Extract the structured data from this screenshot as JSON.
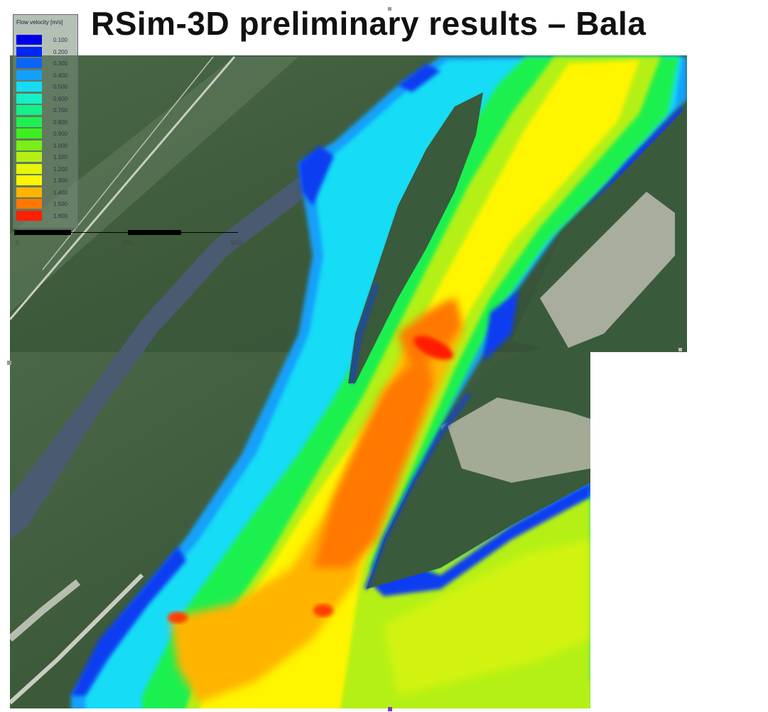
{
  "title": "RSim-3D preliminary results – Bala",
  "legend": {
    "title": "Flow velocity [m/s]",
    "items": [
      {
        "label": "0.100",
        "color": "#0000e6"
      },
      {
        "label": "0.200",
        "color": "#0028f0"
      },
      {
        "label": "0.300",
        "color": "#0a64f5"
      },
      {
        "label": "0.400",
        "color": "#14a0fa"
      },
      {
        "label": "0.500",
        "color": "#14dcf5"
      },
      {
        "label": "0.600",
        "color": "#14f0c8"
      },
      {
        "label": "0.700",
        "color": "#14f08c"
      },
      {
        "label": "0.800",
        "color": "#1ef050"
      },
      {
        "label": "0.900",
        "color": "#3cf01e"
      },
      {
        "label": "1.000",
        "color": "#78f014"
      },
      {
        "label": "1.100",
        "color": "#b4f014"
      },
      {
        "label": "1.200",
        "color": "#e6f50a"
      },
      {
        "label": "1.300",
        "color": "#fff500"
      },
      {
        "label": "1.400",
        "color": "#ffb400"
      },
      {
        "label": "1.500",
        "color": "#ff7800"
      },
      {
        "label": "1.600",
        "color": "#ff1e00"
      }
    ]
  },
  "scalebar": {
    "ticks": [
      "0",
      "250",
      "500"
    ],
    "unit": "m"
  },
  "colors": {
    "forest": "#3d5a3a",
    "forest_dark": "#2c4a2c",
    "clearing": "#a9b09c",
    "river_old": "#4a5a6e",
    "road": "#c8ccc0"
  }
}
